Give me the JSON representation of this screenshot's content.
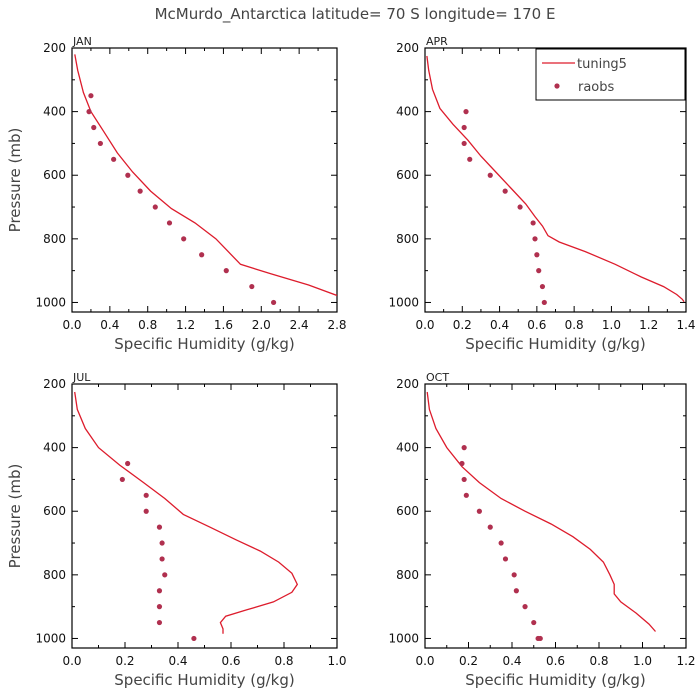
{
  "figure": {
    "title": "McMurdo_Antarctica  latitude= 70 S longitude= 170 E",
    "ylabel": "Pressure (mb)",
    "xlabel": "Specific Humidity (g/kg)",
    "colors": {
      "model": "#dd1c2c",
      "obs": "#b0304f"
    },
    "legend": {
      "entries": [
        "tuning5",
        "raobs"
      ],
      "placement": "top-right of APR panel"
    }
  },
  "chart_data": [
    {
      "type": "line",
      "panel": "JAN",
      "title": "JAN",
      "xlabel": "Specific Humidity (g/kg)",
      "ylabel": "Pressure (mb)",
      "xlim": [
        0,
        2.8
      ],
      "ylim": [
        200,
        1030
      ],
      "y_inverted": true,
      "xticks": [
        "0.0",
        "0.4",
        "0.8",
        "1.2",
        "1.6",
        "2.0",
        "2.4",
        "2.8"
      ],
      "yticks": [
        "200",
        "400",
        "600",
        "800",
        "1000"
      ],
      "series": [
        {
          "name": "tuning5",
          "kind": "line",
          "x": [
            0.03,
            0.06,
            0.12,
            0.2,
            0.33,
            0.48,
            0.64,
            0.83,
            1.05,
            1.3,
            1.52,
            1.65,
            1.78,
            2.1,
            2.5,
            2.8
          ],
          "y": [
            220,
            270,
            340,
            400,
            460,
            530,
            590,
            650,
            705,
            750,
            800,
            840,
            880,
            910,
            945,
            978
          ]
        },
        {
          "name": "raobs",
          "kind": "scatter",
          "x": [
            0.2,
            0.18,
            0.23,
            0.3,
            0.44,
            0.59,
            0.72,
            0.88,
            1.03,
            1.18,
            1.37,
            1.63,
            1.9,
            2.13
          ],
          "y": [
            350,
            400,
            450,
            500,
            550,
            600,
            650,
            700,
            750,
            800,
            850,
            900,
            950,
            1000
          ]
        }
      ]
    },
    {
      "type": "line",
      "panel": "APR",
      "title": "APR",
      "xlabel": "Specific Humidity (g/kg)",
      "ylabel": "Pressure (mb)",
      "xlim": [
        0,
        1.4
      ],
      "ylim": [
        200,
        1030
      ],
      "y_inverted": true,
      "xticks": [
        "0.0",
        "0.2",
        "0.4",
        "0.6",
        "0.8",
        "1.0",
        "1.2",
        "1.4"
      ],
      "yticks": [
        "200",
        "400",
        "600",
        "800",
        "1000"
      ],
      "series": [
        {
          "name": "tuning5",
          "kind": "line",
          "x": [
            0.01,
            0.02,
            0.04,
            0.08,
            0.15,
            0.23,
            0.3,
            0.38,
            0.46,
            0.54,
            0.59,
            0.63,
            0.66,
            0.72,
            0.86,
            1.02,
            1.16,
            1.28,
            1.35,
            1.38,
            1.39
          ],
          "y": [
            225,
            270,
            330,
            390,
            440,
            490,
            540,
            590,
            640,
            690,
            730,
            760,
            790,
            810,
            840,
            880,
            920,
            950,
            975,
            990,
            998
          ]
        },
        {
          "name": "raobs",
          "kind": "scatter",
          "x": [
            0.22,
            0.21,
            0.21,
            0.24,
            0.35,
            0.43,
            0.51,
            0.58,
            0.59,
            0.6,
            0.61,
            0.63,
            0.64
          ],
          "y": [
            400,
            450,
            500,
            550,
            600,
            650,
            700,
            750,
            800,
            850,
            900,
            950,
            1000
          ]
        }
      ]
    },
    {
      "type": "line",
      "panel": "JUL",
      "title": "JUL",
      "xlabel": "Specific Humidity (g/kg)",
      "ylabel": "Pressure (mb)",
      "xlim": [
        0,
        1.0
      ],
      "ylim": [
        200,
        1030
      ],
      "y_inverted": true,
      "xticks": [
        "0.0",
        "0.2",
        "0.4",
        "0.6",
        "0.8",
        "1.0"
      ],
      "yticks": [
        "200",
        "400",
        "600",
        "800",
        "1000"
      ],
      "series": [
        {
          "name": "tuning5",
          "kind": "line",
          "x": [
            0.01,
            0.02,
            0.05,
            0.1,
            0.18,
            0.27,
            0.35,
            0.42,
            0.52,
            0.62,
            0.71,
            0.78,
            0.83,
            0.85,
            0.83,
            0.76,
            0.66,
            0.58,
            0.56,
            0.57,
            0.57
          ],
          "y": [
            225,
            280,
            340,
            400,
            455,
            510,
            560,
            610,
            650,
            690,
            725,
            760,
            795,
            830,
            855,
            885,
            910,
            930,
            950,
            970,
            985
          ]
        },
        {
          "name": "raobs",
          "kind": "scatter",
          "x": [
            0.21,
            0.19,
            0.28,
            0.28,
            0.33,
            0.34,
            0.34,
            0.35,
            0.33,
            0.33,
            0.33,
            0.46
          ],
          "y": [
            450,
            500,
            550,
            600,
            650,
            700,
            750,
            800,
            850,
            900,
            950,
            1000
          ]
        }
      ]
    },
    {
      "type": "line",
      "panel": "OCT",
      "title": "OCT",
      "xlabel": "Specific Humidity (g/kg)",
      "ylabel": "Pressure (mb)",
      "xlim": [
        0,
        1.2
      ],
      "ylim": [
        200,
        1030
      ],
      "y_inverted": true,
      "xticks": [
        "0.0",
        "0.2",
        "0.4",
        "0.6",
        "0.8",
        "1.0",
        "1.2"
      ],
      "yticks": [
        "200",
        "400",
        "600",
        "800",
        "1000"
      ],
      "series": [
        {
          "name": "tuning5",
          "kind": "line",
          "x": [
            0.01,
            0.02,
            0.05,
            0.1,
            0.17,
            0.25,
            0.35,
            0.46,
            0.58,
            0.68,
            0.76,
            0.82,
            0.85,
            0.87,
            0.87,
            0.9,
            0.97,
            1.03,
            1.06
          ],
          "y": [
            225,
            280,
            340,
            400,
            460,
            510,
            560,
            600,
            640,
            680,
            720,
            760,
            800,
            830,
            860,
            885,
            920,
            955,
            978
          ]
        },
        {
          "name": "raobs",
          "kind": "scatter",
          "x": [
            0.18,
            0.17,
            0.18,
            0.19,
            0.25,
            0.3,
            0.35,
            0.37,
            0.41,
            0.42,
            0.46,
            0.5,
            0.53,
            0.52
          ],
          "y": [
            400,
            450,
            500,
            550,
            600,
            650,
            700,
            750,
            800,
            850,
            900,
            950,
            1000,
            1000
          ]
        }
      ]
    }
  ]
}
